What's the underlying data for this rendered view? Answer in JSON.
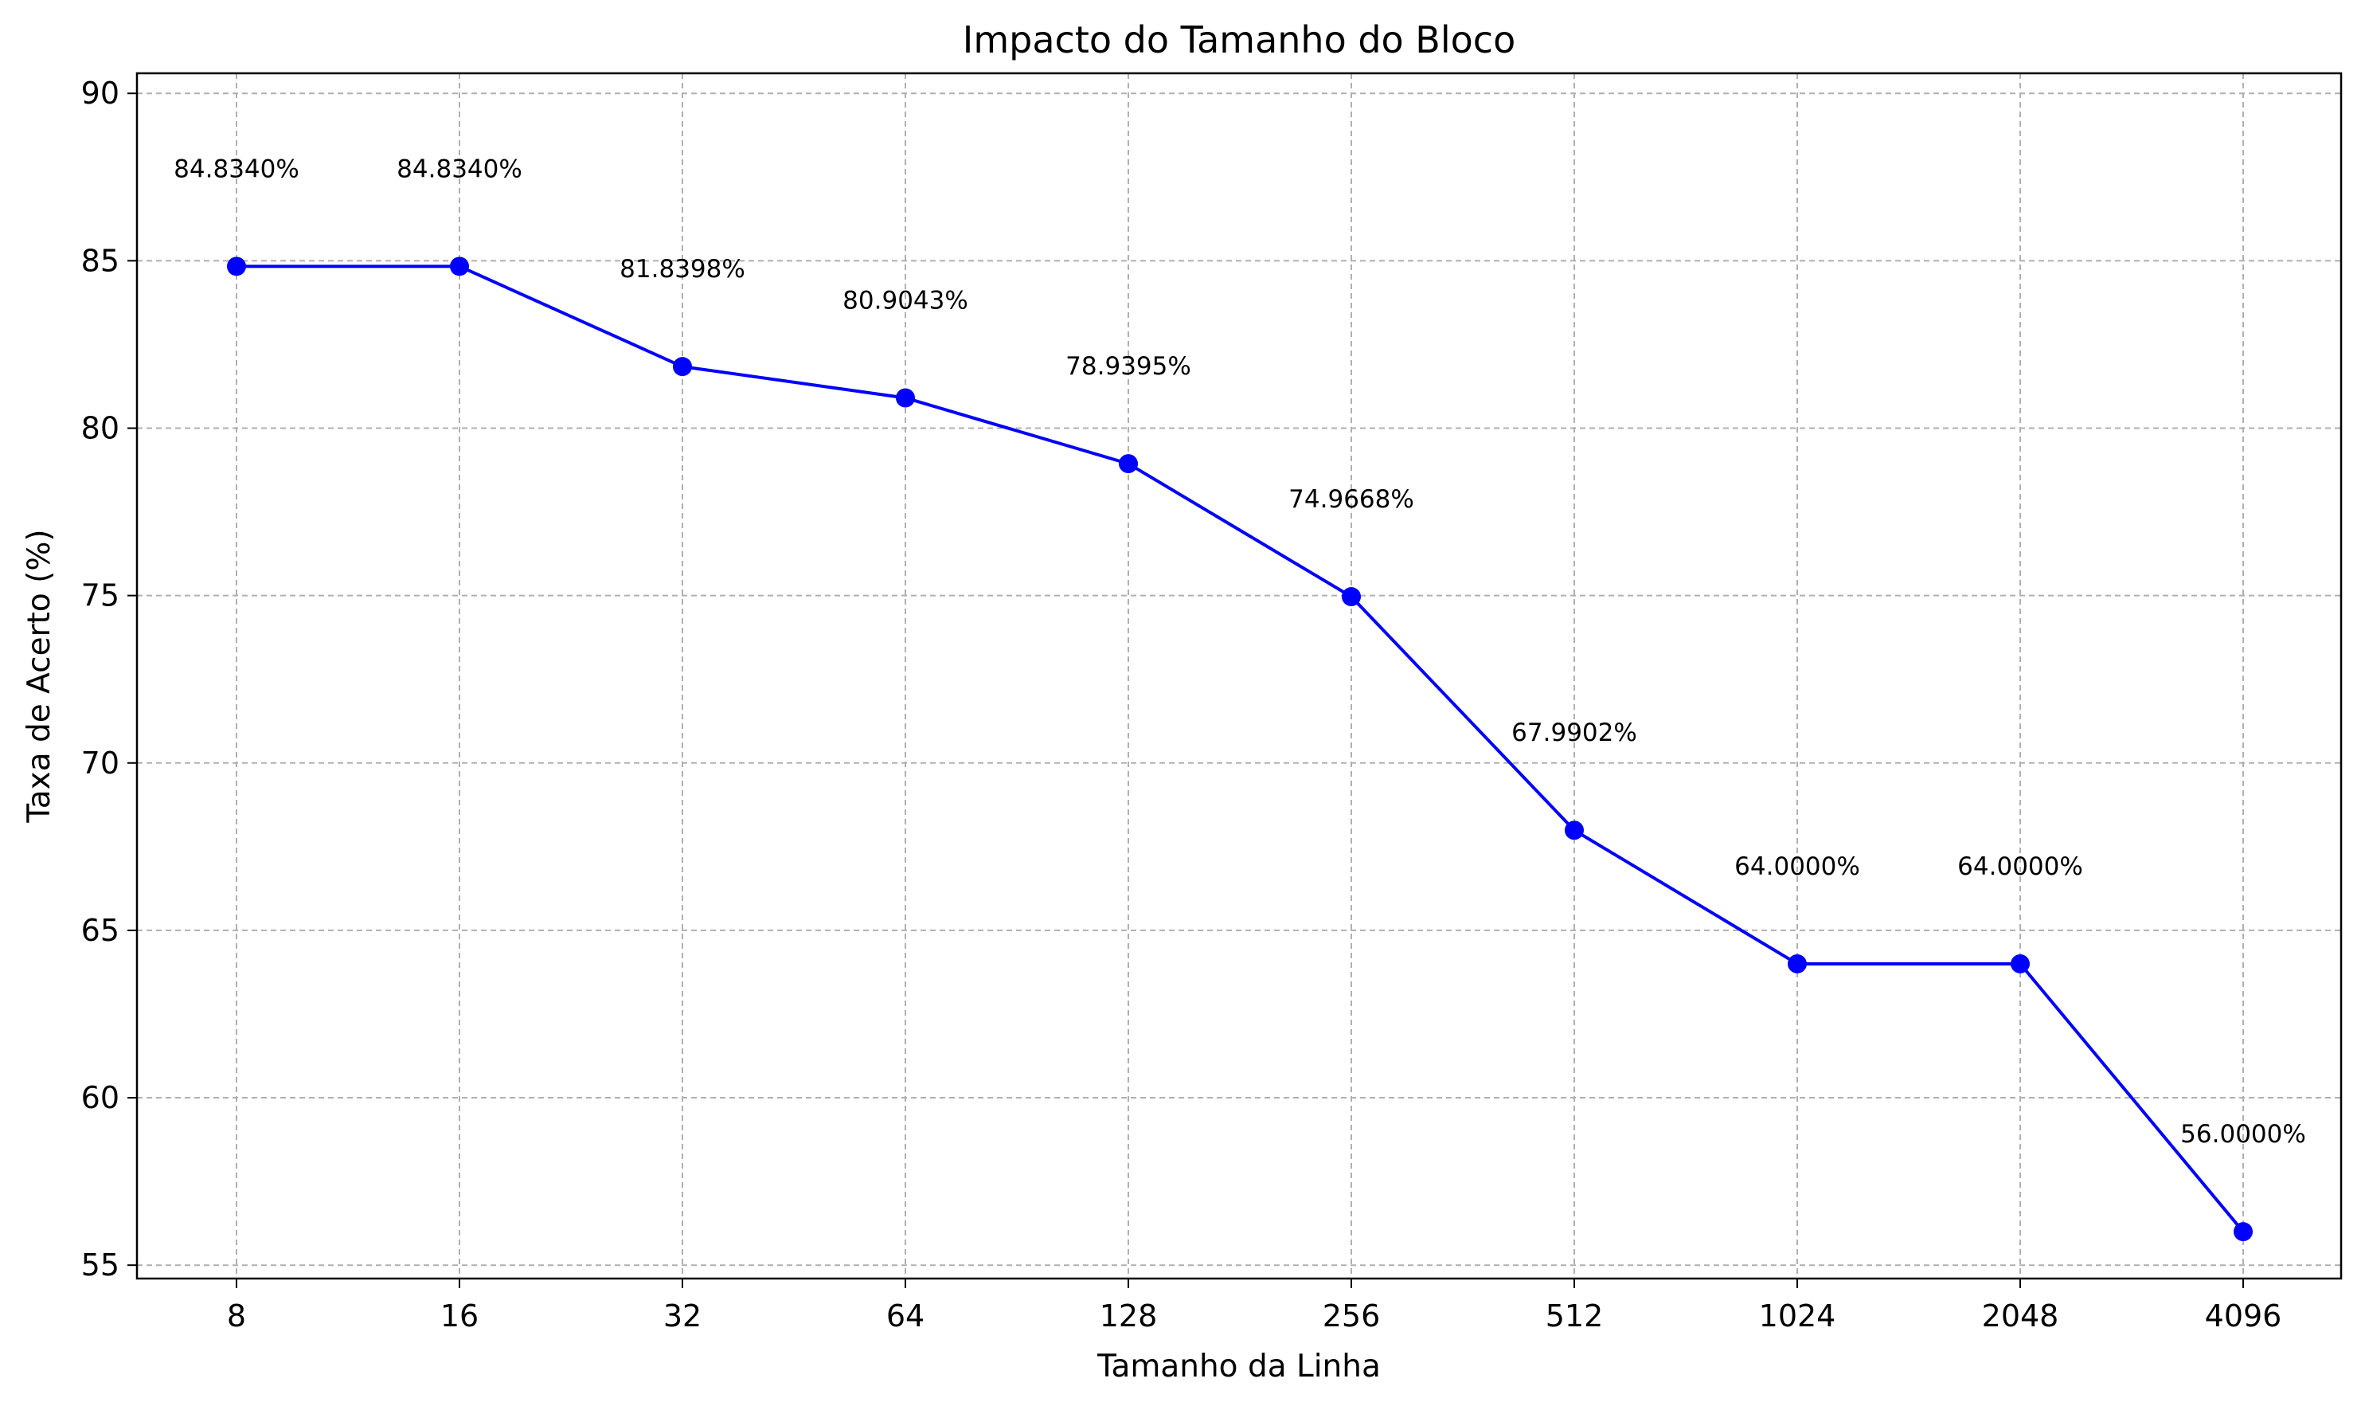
{
  "chart_data": {
    "type": "line",
    "title": "Impacto do Tamanho do Bloco",
    "xlabel": "Tamanho da Linha",
    "ylabel": "Taxa de Acerto (%)",
    "categories": [
      "8",
      "16",
      "32",
      "64",
      "128",
      "256",
      "512",
      "1024",
      "2048",
      "4096"
    ],
    "values": [
      84.834,
      84.834,
      81.8398,
      80.9043,
      78.9395,
      74.9668,
      67.9902,
      64.0,
      64.0,
      56.0
    ],
    "data_labels": [
      "84.8340%",
      "84.8340%",
      "81.8398%",
      "80.9043%",
      "78.9395%",
      "74.9668%",
      "67.9902%",
      "64.0000%",
      "64.0000%",
      "56.0000%"
    ],
    "ylim": [
      54.6,
      90.6
    ],
    "yticks": [
      55,
      60,
      65,
      70,
      75,
      80,
      85,
      90
    ],
    "grid": true,
    "line_color": "#0000ff",
    "marker_color": "#0000ff"
  }
}
